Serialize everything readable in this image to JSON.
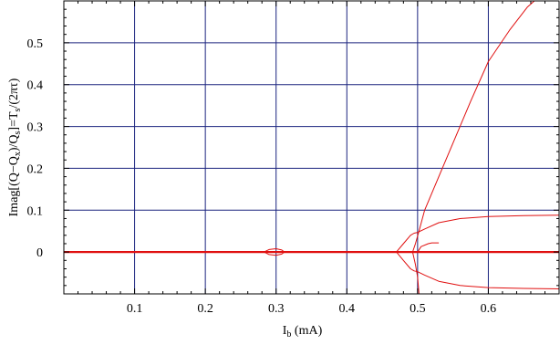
{
  "chart_data": {
    "type": "line",
    "xlabel": "I_b  (mA)",
    "ylabel": "Imag[(Q−Q_x)/Q_s]=T_s/(2πτ)",
    "xlim": [
      0,
      0.7
    ],
    "ylim": [
      -0.1,
      0.6
    ],
    "grid": true,
    "grid_color": "#1a237e",
    "line_color": "#e01010",
    "x_ticks": [
      {
        "value": 0.1,
        "label": "0.1"
      },
      {
        "value": 0.2,
        "label": "0.2"
      },
      {
        "value": 0.3,
        "label": "0.3"
      },
      {
        "value": 0.4,
        "label": "0.4"
      },
      {
        "value": 0.5,
        "label": "0.5"
      },
      {
        "value": 0.6,
        "label": "0.6"
      }
    ],
    "y_ticks": [
      {
        "value": 0,
        "label": "0"
      },
      {
        "value": 0.1,
        "label": "0.1"
      },
      {
        "value": 0.2,
        "label": "0.2"
      },
      {
        "value": 0.3,
        "label": "0.3"
      },
      {
        "value": 0.4,
        "label": "0.4"
      },
      {
        "value": 0.5,
        "label": "0.5"
      }
    ],
    "series": [
      {
        "stroke": 2.2,
        "points": [
          [
            0,
            0
          ],
          [
            0.7,
            0
          ]
        ]
      },
      {
        "stroke": 1,
        "points": [
          [
            0.283,
            0
          ],
          [
            0.29,
            0.006
          ],
          [
            0.3,
            0.008
          ],
          [
            0.308,
            0.005
          ],
          [
            0.312,
            0
          ]
        ]
      },
      {
        "stroke": 1,
        "points": [
          [
            0.283,
            0
          ],
          [
            0.29,
            -0.006
          ],
          [
            0.3,
            -0.008
          ],
          [
            0.308,
            -0.005
          ],
          [
            0.312,
            0
          ]
        ]
      },
      {
        "stroke": 1,
        "points": [
          [
            0.47,
            0
          ],
          [
            0.48,
            0.02
          ],
          [
            0.49,
            0.04
          ],
          [
            0.495,
            0.045
          ],
          [
            0.5,
            0.047
          ],
          [
            0.51,
            0.055
          ],
          [
            0.53,
            0.07
          ],
          [
            0.56,
            0.08
          ],
          [
            0.6,
            0.085
          ],
          [
            0.65,
            0.087
          ],
          [
            0.7,
            0.088
          ]
        ]
      },
      {
        "stroke": 1,
        "points": [
          [
            0.47,
            0
          ],
          [
            0.48,
            -0.02
          ],
          [
            0.49,
            -0.04
          ],
          [
            0.495,
            -0.045
          ],
          [
            0.5,
            -0.047
          ],
          [
            0.51,
            -0.055
          ],
          [
            0.53,
            -0.07
          ],
          [
            0.56,
            -0.08
          ],
          [
            0.6,
            -0.085
          ],
          [
            0.65,
            -0.087
          ],
          [
            0.7,
            -0.088
          ]
        ]
      },
      {
        "stroke": 1,
        "points": [
          [
            0.493,
            0
          ],
          [
            0.497,
            0.02
          ],
          [
            0.502,
            0.05
          ],
          [
            0.51,
            0.1
          ],
          [
            0.53,
            0.18
          ],
          [
            0.55,
            0.26
          ],
          [
            0.575,
            0.36
          ],
          [
            0.6,
            0.455
          ],
          [
            0.63,
            0.53
          ],
          [
            0.655,
            0.585
          ],
          [
            0.665,
            0.6
          ]
        ]
      },
      {
        "stroke": 1,
        "points": [
          [
            0.493,
            0
          ],
          [
            0.497,
            -0.03
          ],
          [
            0.5,
            -0.06
          ],
          [
            0.502,
            -0.1
          ]
        ]
      },
      {
        "stroke": 1,
        "points": [
          [
            0.5,
            0
          ],
          [
            0.505,
            0.013
          ],
          [
            0.515,
            0.02
          ],
          [
            0.52,
            0.022
          ],
          [
            0.53,
            0.022
          ]
        ]
      }
    ]
  }
}
